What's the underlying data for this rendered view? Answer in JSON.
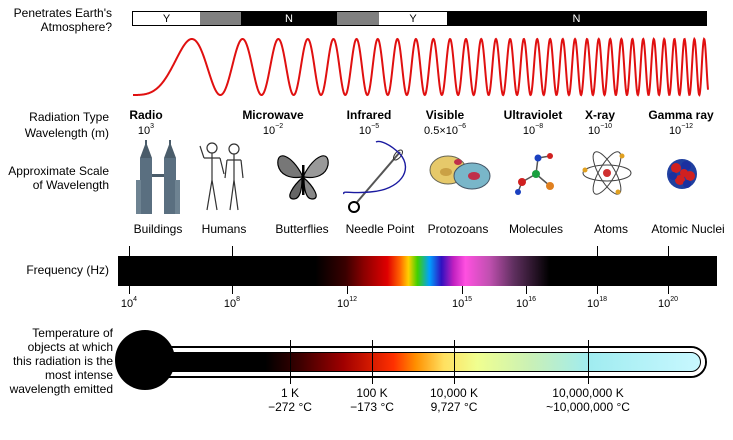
{
  "atmosphere": {
    "question_line1": "Penetrates Earth's",
    "question_line2": "Atmosphere?",
    "segments": [
      "Y",
      "",
      "N",
      "",
      "Y",
      "N"
    ]
  },
  "row_labels": {
    "radiation_type": "Radiation Type",
    "wavelength": "Wavelength (m)",
    "scale_line1": "Approximate Scale",
    "scale_line2": "of Wavelength",
    "frequency": "Frequency (Hz)",
    "temp_line1": "Temperature of",
    "temp_line2": "objects at which",
    "temp_line3": "this radiation is the",
    "temp_line4": "most intense",
    "temp_line5": "wavelength emitted"
  },
  "radiation_types": [
    {
      "name": "Radio",
      "base": "10",
      "exp": "3"
    },
    {
      "name": "Microwave",
      "base": "10",
      "exp": "−2"
    },
    {
      "name": "Infrared",
      "base": "10",
      "exp": "−5"
    },
    {
      "name": "Visible",
      "base": "0.5×10",
      "exp": "−6"
    },
    {
      "name": "Ultraviolet",
      "base": "10",
      "exp": "−8"
    },
    {
      "name": "X-ray",
      "base": "10",
      "exp": "−10"
    },
    {
      "name": "Gamma ray",
      "base": "10",
      "exp": "−12"
    }
  ],
  "scale_objects": [
    "Buildings",
    "Humans",
    "Butterflies",
    "Needle Point",
    "Protozoans",
    "Molecules",
    "Atoms",
    "Atomic Nuclei"
  ],
  "frequency_ticks": [
    {
      "base": "10",
      "exp": "4"
    },
    {
      "base": "10",
      "exp": "8"
    },
    {
      "base": "10",
      "exp": "12"
    },
    {
      "base": "10",
      "exp": "15"
    },
    {
      "base": "10",
      "exp": "16"
    },
    {
      "base": "10",
      "exp": "18"
    },
    {
      "base": "10",
      "exp": "20"
    }
  ],
  "temperatures": [
    {
      "kelvin": "1 K",
      "celsius": "−272 °C"
    },
    {
      "kelvin": "100 K",
      "celsius": "−173 °C"
    },
    {
      "kelvin": "10,000 K",
      "celsius": "9,727 °C"
    },
    {
      "kelvin": "10,000,000 K",
      "celsius": "~10,000,000 °C"
    }
  ],
  "colors": {
    "wave": "#e01010",
    "bar_black": "#000000",
    "gray_segment": "#808080"
  }
}
